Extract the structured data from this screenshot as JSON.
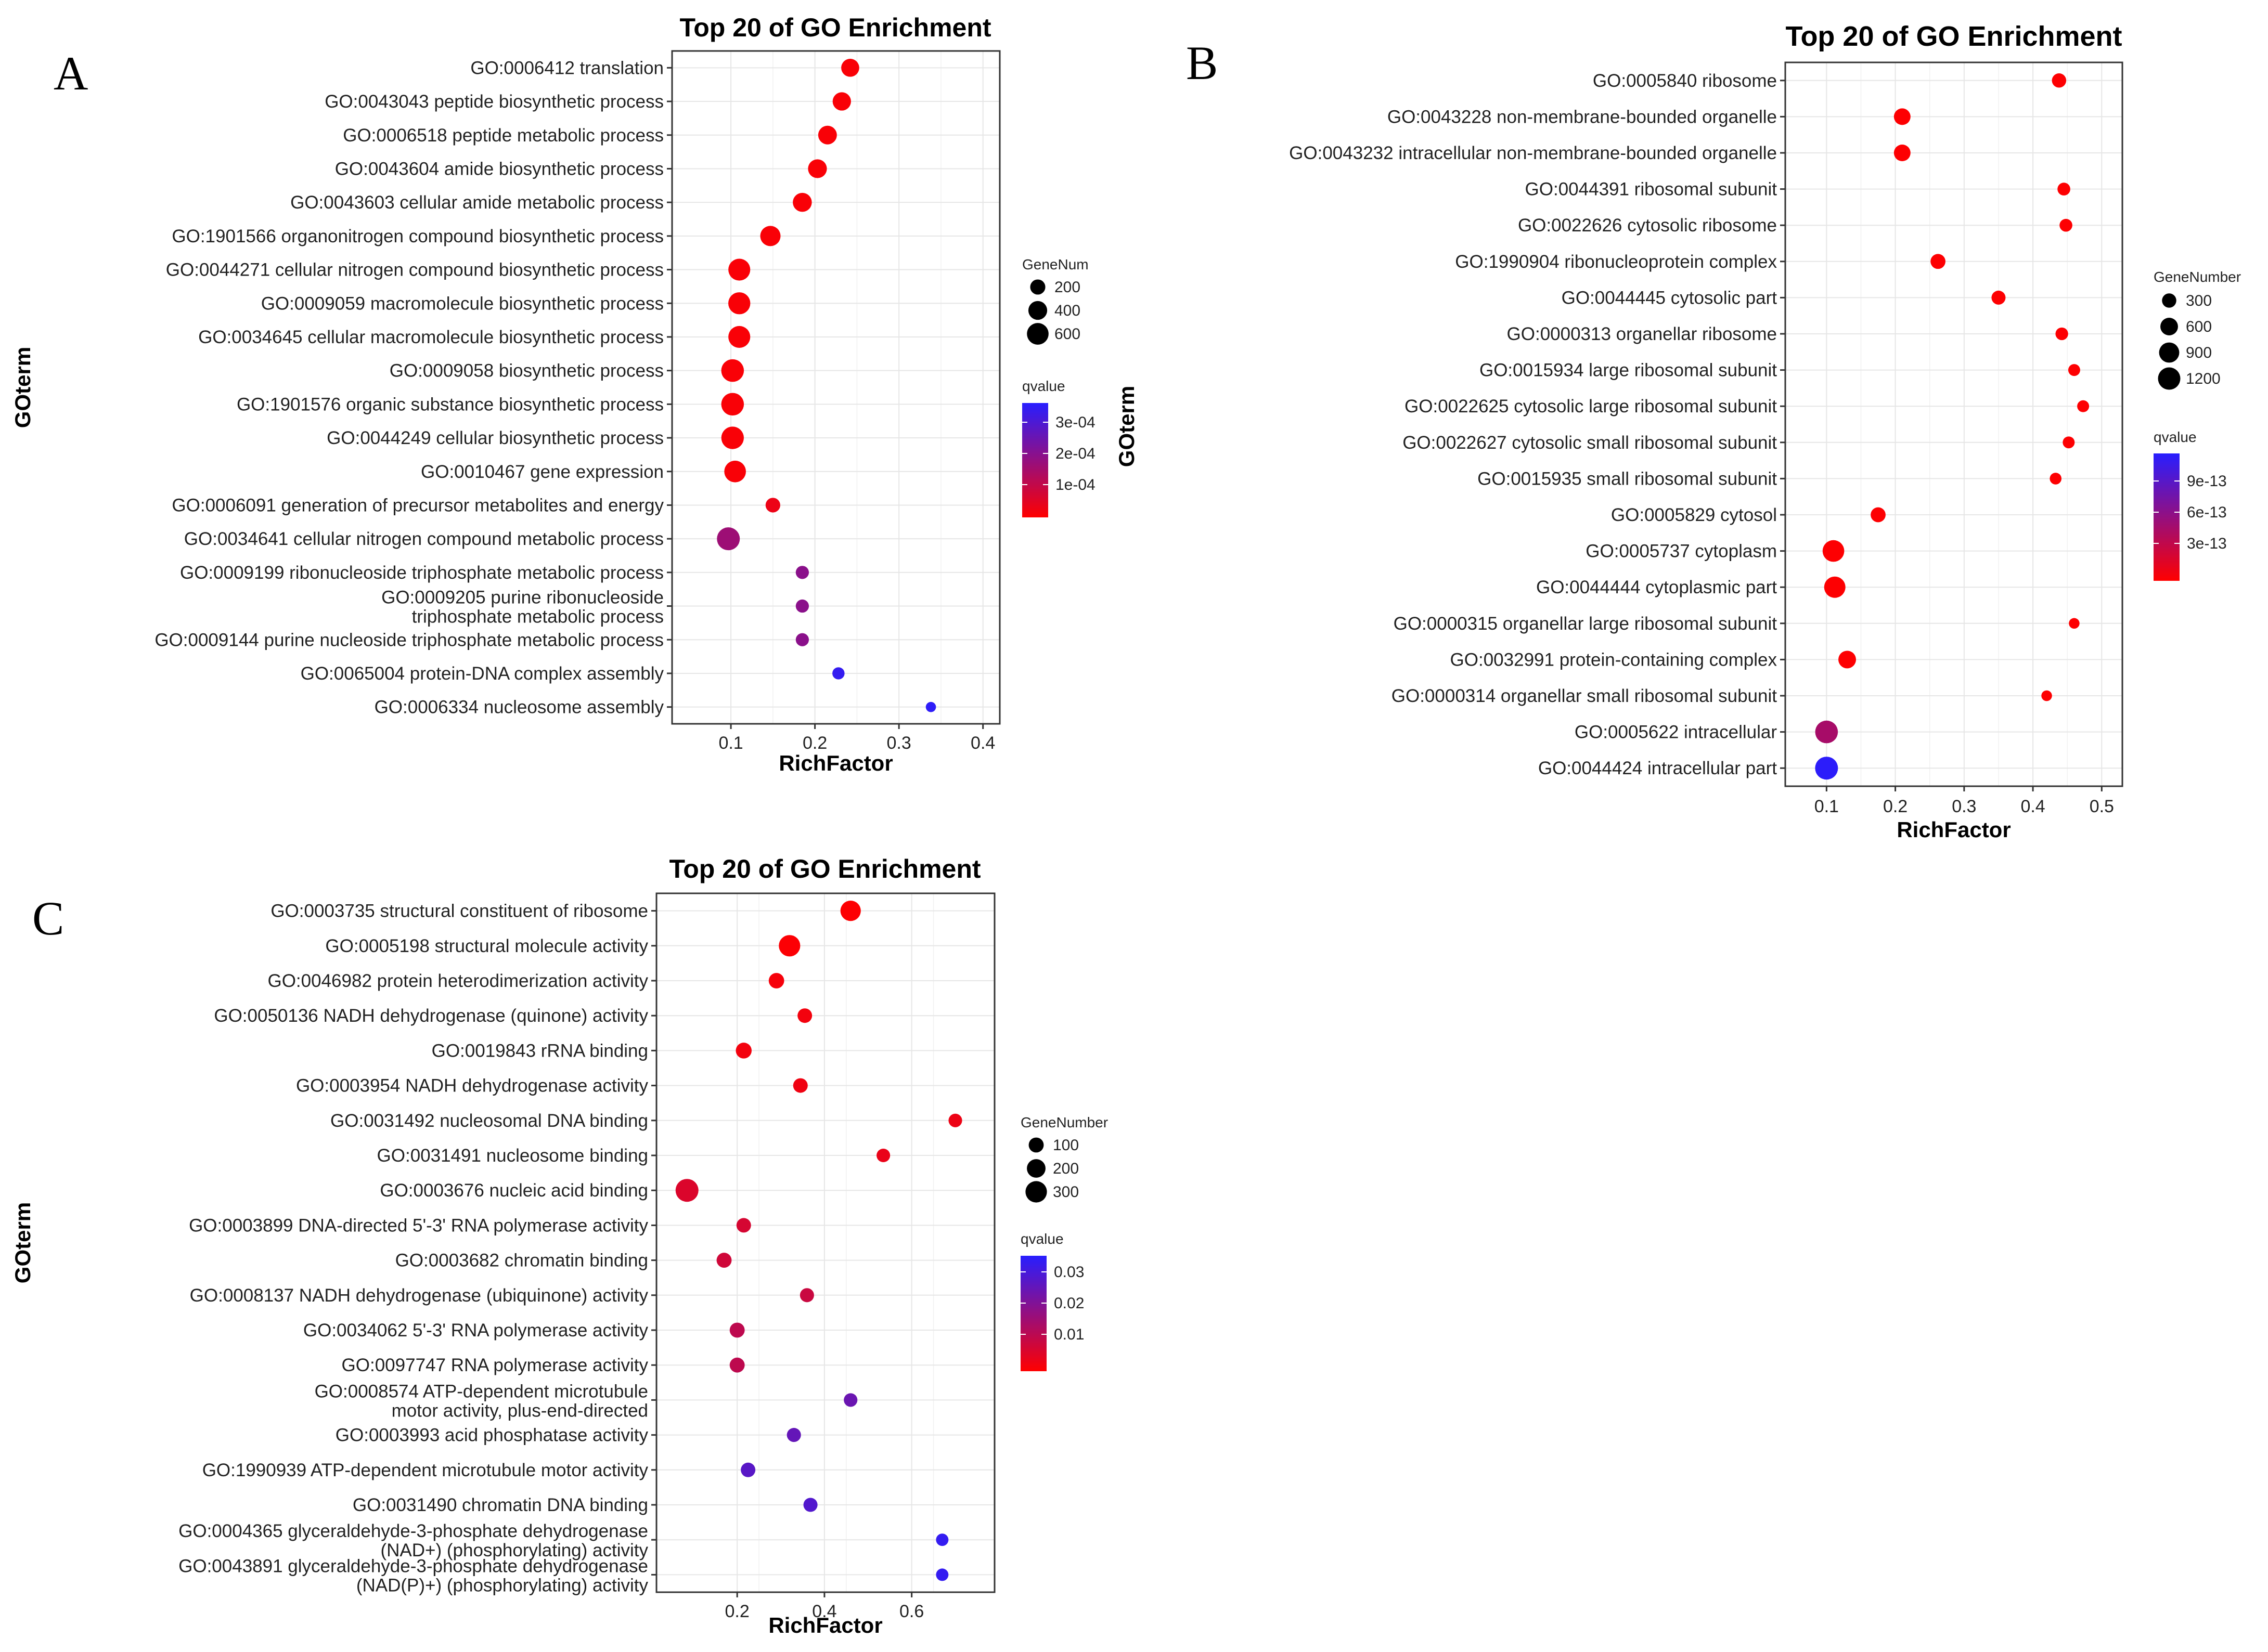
{
  "chart_data": [
    {
      "panel": "A",
      "type": "scatter",
      "title": "Top 20 of GO Enrichment",
      "xlabel": "RichFactor",
      "ylabel": "GOterm",
      "xlim": [
        0.03,
        0.42
      ],
      "xticks": [
        "0.1",
        "0.2",
        "0.3",
        "0.4"
      ],
      "grid": true,
      "size_legend": {
        "title": "GeneNum",
        "labels": [
          "200",
          "400",
          "600"
        ],
        "values": [
          200,
          400,
          600
        ]
      },
      "color_legend": {
        "title": "qvalue",
        "labels": [
          "3e-04",
          "2e-04",
          "1e-04"
        ],
        "range": [
          0,
          0.00035
        ]
      },
      "points": [
        {
          "term": [
            "GO:0006412 translation"
          ],
          "x": 0.242,
          "genes": 350,
          "q": 1e-05
        },
        {
          "term": [
            "GO:0043043 peptide biosynthetic process"
          ],
          "x": 0.232,
          "genes": 370,
          "q": 1e-05
        },
        {
          "term": [
            "GO:0006518 peptide metabolic process"
          ],
          "x": 0.215,
          "genes": 390,
          "q": 1e-05
        },
        {
          "term": [
            "GO:0043604 amide biosynthetic process"
          ],
          "x": 0.203,
          "genes": 400,
          "q": 1e-05
        },
        {
          "term": [
            "GO:0043603 cellular amide metabolic process"
          ],
          "x": 0.185,
          "genes": 410,
          "q": 1e-05
        },
        {
          "term": [
            "GO:1901566 organonitrogen compound biosynthetic process"
          ],
          "x": 0.147,
          "genes": 500,
          "q": 1e-05
        },
        {
          "term": [
            "GO:0044271 cellular nitrogen compound biosynthetic process"
          ],
          "x": 0.11,
          "genes": 620,
          "q": 1e-05
        },
        {
          "term": [
            "GO:0009059 macromolecule biosynthetic process"
          ],
          "x": 0.11,
          "genes": 630,
          "q": 1e-05
        },
        {
          "term": [
            "GO:0034645 cellular macromolecule biosynthetic process"
          ],
          "x": 0.11,
          "genes": 620,
          "q": 1e-05
        },
        {
          "term": [
            "GO:0009058 biosynthetic process"
          ],
          "x": 0.102,
          "genes": 680,
          "q": 1e-05
        },
        {
          "term": [
            "GO:1901576 organic substance biosynthetic process"
          ],
          "x": 0.102,
          "genes": 680,
          "q": 1e-05
        },
        {
          "term": [
            "GO:0044249 cellular biosynthetic process"
          ],
          "x": 0.102,
          "genes": 670,
          "q": 1e-05
        },
        {
          "term": [
            "GO:0010467 gene expression"
          ],
          "x": 0.105,
          "genes": 600,
          "q": 1e-05
        },
        {
          "term": [
            "GO:0006091 generation of precursor metabolites and energy"
          ],
          "x": 0.15,
          "genes": 180,
          "q": 3e-05
        },
        {
          "term": [
            "GO:0034641 cellular nitrogen compound metabolic process"
          ],
          "x": 0.097,
          "genes": 700,
          "q": 0.00016
        },
        {
          "term": [
            "GO:0009199 ribonucleoside triphosphate metabolic process"
          ],
          "x": 0.185,
          "genes": 120,
          "q": 0.00019
        },
        {
          "term": [
            "GO:0009205 purine ribonucleoside",
            "triphosphate metabolic process"
          ],
          "x": 0.185,
          "genes": 120,
          "q": 0.00019
        },
        {
          "term": [
            "GO:0009144 purine nucleoside triphosphate metabolic process"
          ],
          "x": 0.185,
          "genes": 120,
          "q": 0.00019
        },
        {
          "term": [
            "GO:0065004 protein-DNA complex assembly"
          ],
          "x": 0.228,
          "genes": 90,
          "q": 0.00033
        },
        {
          "term": [
            "GO:0006334 nucleosome assembly"
          ],
          "x": 0.338,
          "genes": 40,
          "q": 0.00034
        }
      ]
    },
    {
      "panel": "B",
      "type": "scatter",
      "title": "Top 20 of GO Enrichment",
      "xlabel": "RichFactor",
      "ylabel": "GOterm",
      "xlim": [
        0.04,
        0.53
      ],
      "xticks": [
        "0.1",
        "0.2",
        "0.3",
        "0.4",
        "0.5"
      ],
      "grid": true,
      "size_legend": {
        "title": "GeneNumber",
        "labels": [
          "300",
          "600",
          "900",
          "1200"
        ],
        "values": [
          300,
          600,
          900,
          1200
        ]
      },
      "color_legend": {
        "title": "qvalue",
        "labels": [
          "9e-13",
          "6e-13",
          "3e-13"
        ],
        "range": [
          0,
          1.1e-12
        ]
      },
      "points": [
        {
          "term": [
            "GO:0005840 ribosome"
          ],
          "x": 0.438,
          "genes": 300,
          "q": 1e-14
        },
        {
          "term": [
            "GO:0043228 non-membrane-bounded organelle"
          ],
          "x": 0.21,
          "genes": 500,
          "q": 1e-14
        },
        {
          "term": [
            "GO:0043232 intracellular non-membrane-bounded organelle"
          ],
          "x": 0.21,
          "genes": 500,
          "q": 1e-14
        },
        {
          "term": [
            "GO:0044391 ribosomal subunit"
          ],
          "x": 0.445,
          "genes": 200,
          "q": 1e-14
        },
        {
          "term": [
            "GO:0022626 cytosolic ribosome"
          ],
          "x": 0.448,
          "genes": 200,
          "q": 1e-14
        },
        {
          "term": [
            "GO:1990904 ribonucleoprotein complex"
          ],
          "x": 0.262,
          "genes": 350,
          "q": 1e-14
        },
        {
          "term": [
            "GO:0044445 cytosolic part"
          ],
          "x": 0.35,
          "genes": 280,
          "q": 1e-14
        },
        {
          "term": [
            "GO:0000313 organellar ribosome"
          ],
          "x": 0.442,
          "genes": 190,
          "q": 1e-14
        },
        {
          "term": [
            "GO:0015934 large ribosomal subunit"
          ],
          "x": 0.46,
          "genes": 150,
          "q": 1e-14
        },
        {
          "term": [
            "GO:0022625 cytosolic large ribosomal subunit"
          ],
          "x": 0.473,
          "genes": 150,
          "q": 1e-14
        },
        {
          "term": [
            "GO:0022627 cytosolic small ribosomal subunit"
          ],
          "x": 0.452,
          "genes": 150,
          "q": 1e-14
        },
        {
          "term": [
            "GO:0015935 small ribosomal subunit"
          ],
          "x": 0.433,
          "genes": 140,
          "q": 1e-14
        },
        {
          "term": [
            "GO:0005829 cytosol"
          ],
          "x": 0.175,
          "genes": 350,
          "q": 1e-14
        },
        {
          "term": [
            "GO:0005737 cytoplasm"
          ],
          "x": 0.11,
          "genes": 1100,
          "q": 1e-14
        },
        {
          "term": [
            "GO:0044444 cytoplasmic part"
          ],
          "x": 0.112,
          "genes": 1050,
          "q": 1e-14
        },
        {
          "term": [
            "GO:0000315 organellar large ribosomal subunit"
          ],
          "x": 0.46,
          "genes": 90,
          "q": 1e-14
        },
        {
          "term": [
            "GO:0032991 protein-containing complex"
          ],
          "x": 0.13,
          "genes": 600,
          "q": 1e-14
        },
        {
          "term": [
            "GO:0000314 organellar small ribosomal subunit"
          ],
          "x": 0.42,
          "genes": 90,
          "q": 1e-14
        },
        {
          "term": [
            "GO:0005622 intracellular"
          ],
          "x": 0.1,
          "genes": 1250,
          "q": 4.5e-13
        },
        {
          "term": [
            "GO:0044424 intracellular part"
          ],
          "x": 0.1,
          "genes": 1280,
          "q": 1.08e-12
        }
      ]
    },
    {
      "panel": "C",
      "type": "scatter",
      "title": "Top 20 of GO Enrichment",
      "xlabel": "RichFactor",
      "ylabel": "GOterm",
      "xlim": [
        0.015,
        0.79
      ],
      "xticks": [
        "0.2",
        "0.4",
        "0.6"
      ],
      "grid": true,
      "size_legend": {
        "title": "GeneNumber",
        "labels": [
          "100",
          "200",
          "300"
        ],
        "values": [
          100,
          200,
          300
        ]
      },
      "color_legend": {
        "title": "qvalue",
        "labels": [
          "0.03",
          "0.02",
          "0.01"
        ],
        "range": [
          0,
          0.036
        ]
      },
      "points": [
        {
          "term": [
            "GO:0003735 structural constituent of ribosome"
          ],
          "x": 0.46,
          "genes": 260,
          "q": 0.0003
        },
        {
          "term": [
            "GO:0005198 structural molecule activity"
          ],
          "x": 0.32,
          "genes": 300,
          "q": 0.0005
        },
        {
          "term": [
            "GO:0046982 protein heterodimerization activity"
          ],
          "x": 0.29,
          "genes": 110,
          "q": 0.0015
        },
        {
          "term": [
            "GO:0050136 NADH dehydrogenase (quinone) activity"
          ],
          "x": 0.355,
          "genes": 90,
          "q": 0.002
        },
        {
          "term": [
            "GO:0019843 rRNA binding"
          ],
          "x": 0.215,
          "genes": 120,
          "q": 0.002
        },
        {
          "term": [
            "GO:0003954 NADH dehydrogenase activity"
          ],
          "x": 0.345,
          "genes": 90,
          "q": 0.0025
        },
        {
          "term": [
            "GO:0031492 nucleosomal DNA binding"
          ],
          "x": 0.7,
          "genes": 70,
          "q": 0.003
        },
        {
          "term": [
            "GO:0031491 nucleosome binding"
          ],
          "x": 0.535,
          "genes": 70,
          "q": 0.0035
        },
        {
          "term": [
            "GO:0003676 nucleic acid binding"
          ],
          "x": 0.085,
          "genes": 360,
          "q": 0.006
        },
        {
          "term": [
            "GO:0003899 DNA-directed 5'-3' RNA polymerase activity"
          ],
          "x": 0.215,
          "genes": 90,
          "q": 0.007
        },
        {
          "term": [
            "GO:0003682 chromatin binding"
          ],
          "x": 0.17,
          "genes": 100,
          "q": 0.008
        },
        {
          "term": [
            "GO:0008137 NADH dehydrogenase (ubiquinone) activity"
          ],
          "x": 0.36,
          "genes": 80,
          "q": 0.009
        },
        {
          "term": [
            "GO:0034062 5'-3' RNA polymerase activity"
          ],
          "x": 0.2,
          "genes": 100,
          "q": 0.011
        },
        {
          "term": [
            "GO:0097747 RNA polymerase activity"
          ],
          "x": 0.2,
          "genes": 100,
          "q": 0.011
        },
        {
          "term": [
            "GO:0008574 ATP-dependent microtubule",
            "motor activity, plus-end-directed"
          ],
          "x": 0.46,
          "genes": 70,
          "q": 0.025
        },
        {
          "term": [
            "GO:0003993 acid phosphatase activity"
          ],
          "x": 0.33,
          "genes": 80,
          "q": 0.026
        },
        {
          "term": [
            "GO:1990939 ATP-dependent microtubule motor activity"
          ],
          "x": 0.225,
          "genes": 90,
          "q": 0.028
        },
        {
          "term": [
            "GO:0031490 chromatin DNA binding"
          ],
          "x": 0.368,
          "genes": 80,
          "q": 0.029
        },
        {
          "term": [
            "GO:0004365 glyceraldehyde-3-phosphate dehydrogenase",
            "(NAD+) (phosphorylating) activity"
          ],
          "x": 0.67,
          "genes": 50,
          "q": 0.034
        },
        {
          "term": [
            "GO:0043891 glyceraldehyde-3-phosphate dehydrogenase",
            "(NAD(P)+) (phosphorylating) activity"
          ],
          "x": 0.67,
          "genes": 50,
          "q": 0.034
        }
      ]
    }
  ]
}
